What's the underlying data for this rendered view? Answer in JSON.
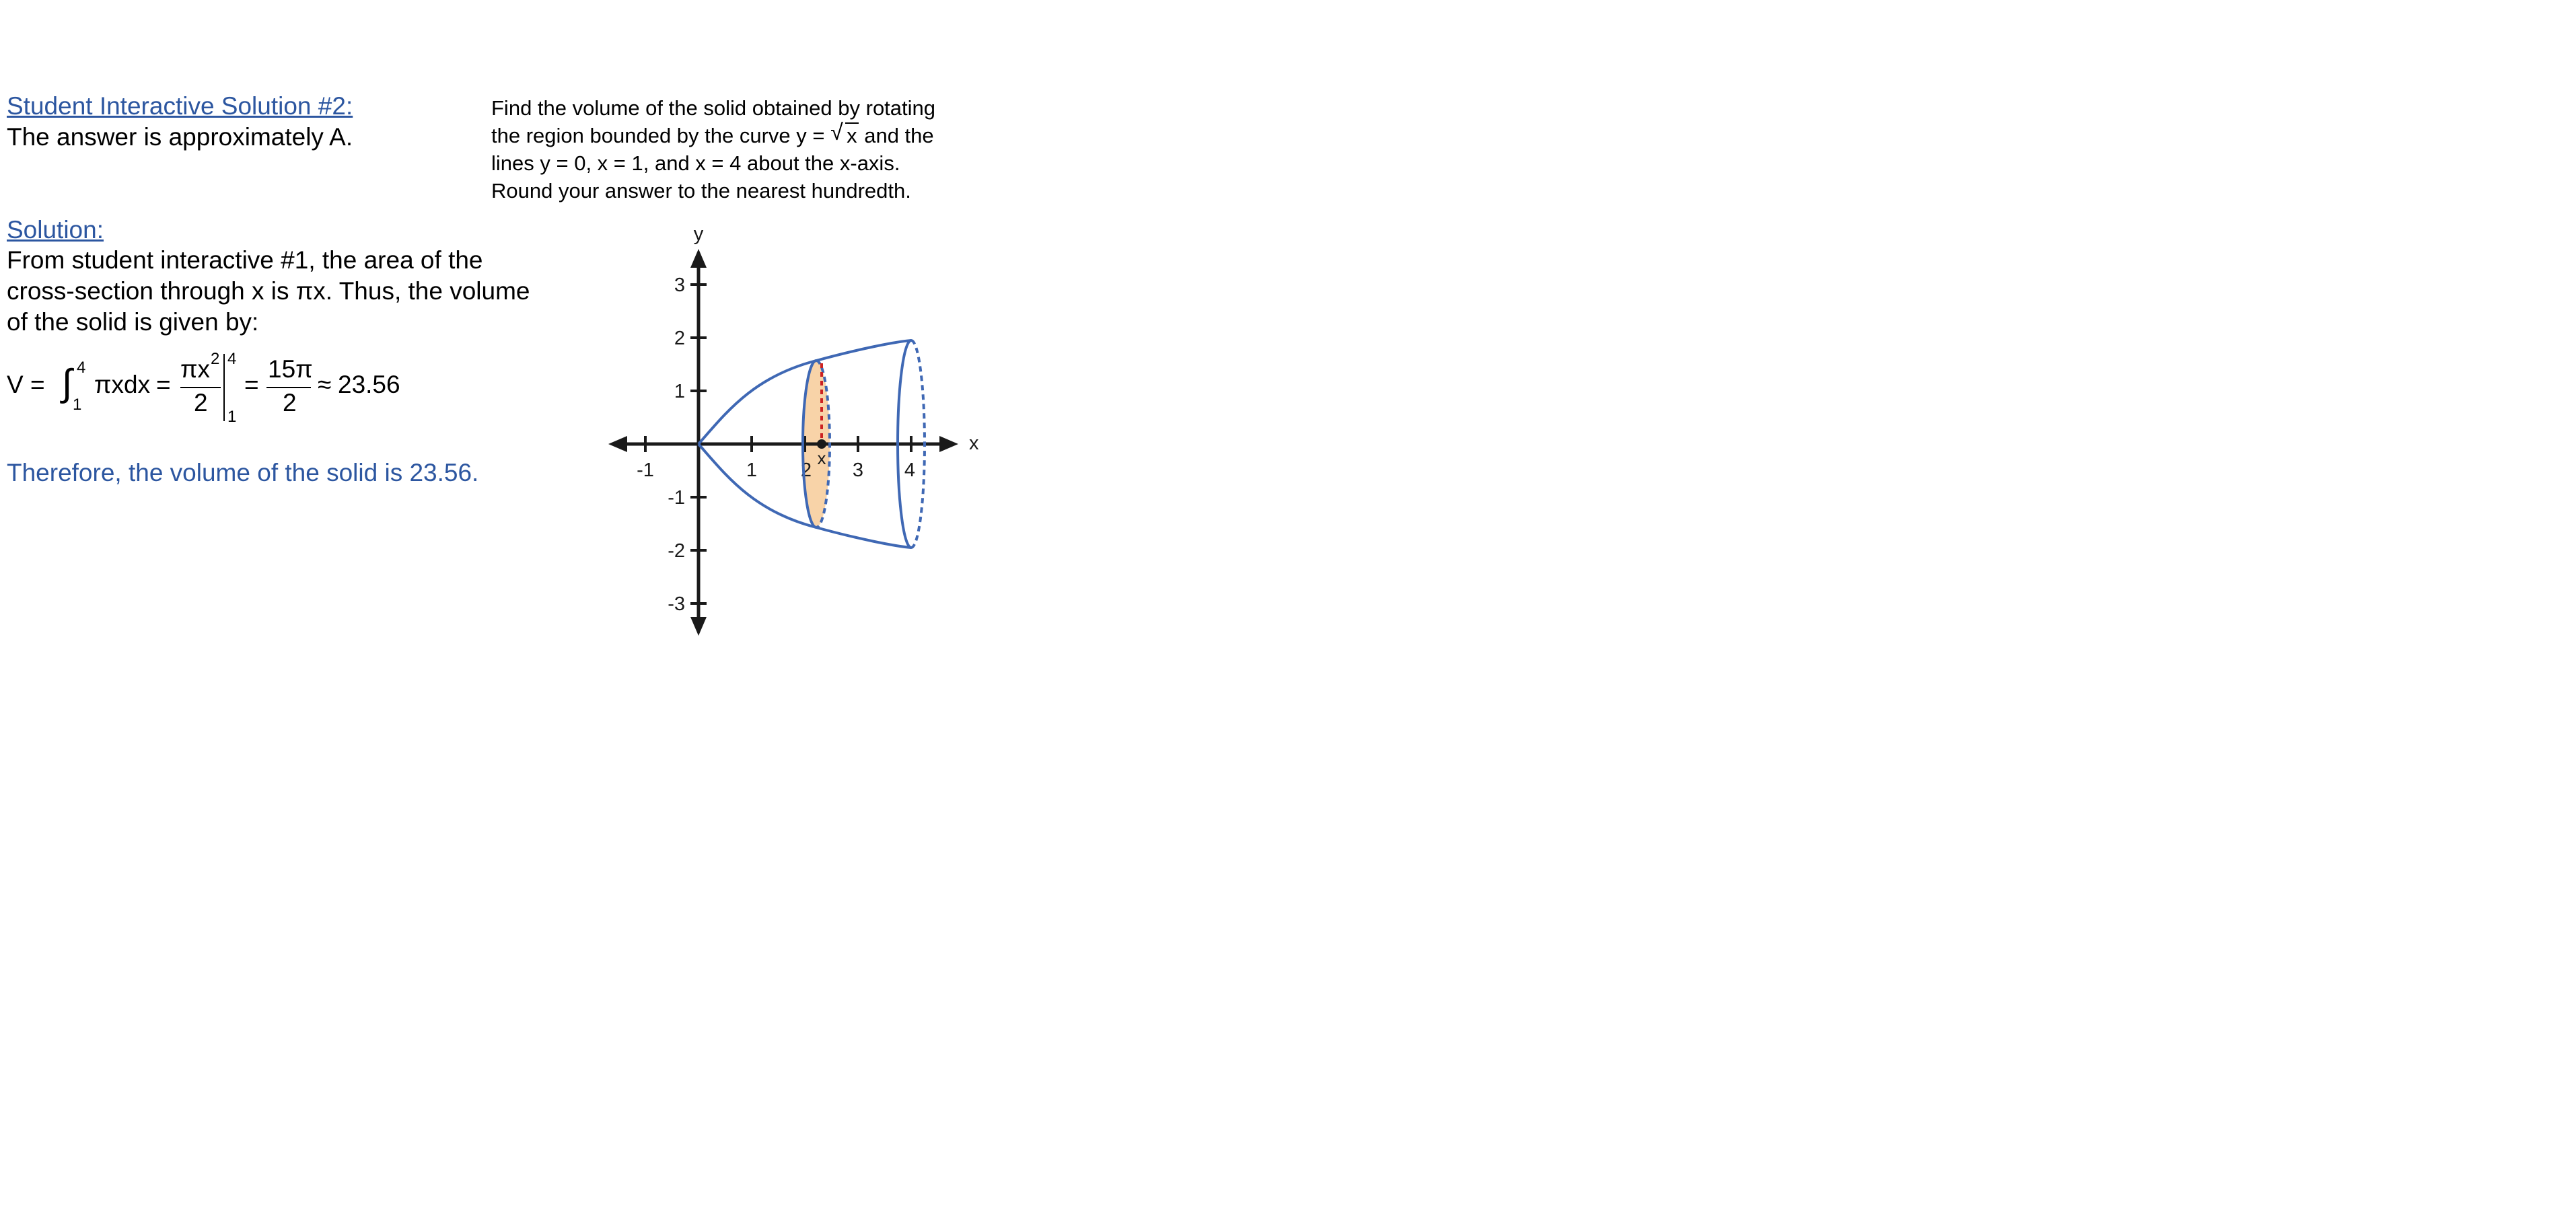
{
  "interactive": {
    "heading": "Student Interactive Solution #2:",
    "answer": "The answer is approximately A."
  },
  "problem": {
    "line1": "Find the volume of the solid obtained by rotating",
    "line2_pre": "the region bounded by the curve y = ",
    "line2_radicand": "x",
    "line2_post": " and the",
    "line3": "lines y = 0, x = 1, and x = 4 about the x-axis.",
    "line4": "Round your answer to the nearest hundredth."
  },
  "solution": {
    "label": "Solution:",
    "line1": "From student interactive #1, the area of the",
    "line2": "cross-section through x is πx.  Thus, the volume",
    "line3": "of the solid is given by:"
  },
  "formula": {
    "lhs": "V =",
    "integral_sign": "∫",
    "upper_limit": "4",
    "lower_limit": "1",
    "integrand": "πxdx",
    "eq1": "=",
    "frac1_num": "πx",
    "frac1_exp": "2",
    "frac1_den": "2",
    "eval_upper": "4",
    "eval_lower": "1",
    "eq2": "=",
    "frac2_num": "15π",
    "frac2_den": "2",
    "approx": "≈",
    "result": "23.56"
  },
  "conclusion": "Therefore, the volume of the solid is 23.56.",
  "graph": {
    "x_axis_label": "x",
    "y_axis_label": "y",
    "x_ticks": [
      "-1",
      "1",
      "2",
      "3",
      "4"
    ],
    "y_ticks": [
      "3",
      "2",
      "1",
      "-1",
      "-2",
      "-3"
    ],
    "slice_label": "x",
    "colors": {
      "curve": "#3f68b4",
      "slice_fill": "#f8d3a8",
      "slice_dash": "#cc2222",
      "axis": "#1a1a1a"
    }
  }
}
